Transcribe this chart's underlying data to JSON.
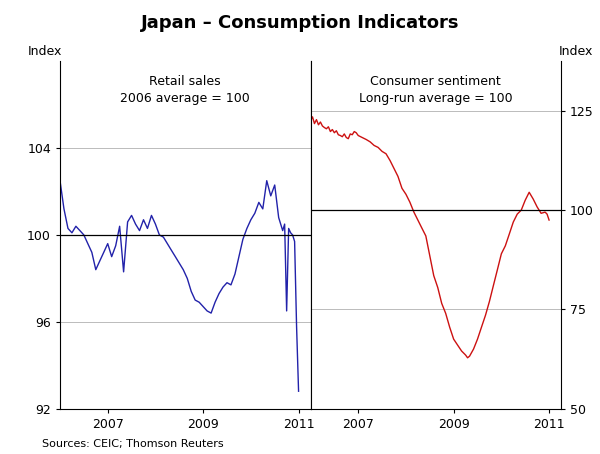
{
  "title": "Japan – Consumption Indicators",
  "left_label": "Index",
  "right_label": "Index",
  "source": "Sources: CEIC; Thomson Reuters",
  "left_panel_title": "Retail sales\n2006 average = 100",
  "right_panel_title": "Consumer sentiment\nLong-run average = 100",
  "left_ylim": [
    92,
    108
  ],
  "right_ylim": [
    50,
    137.5
  ],
  "left_yticks": [
    92,
    96,
    100,
    104
  ],
  "right_yticks": [
    50,
    75,
    100,
    125
  ],
  "left_xticks": [
    2007,
    2009,
    2011
  ],
  "right_xticks": [
    2007,
    2009,
    2011
  ],
  "left_xlim": [
    2006.0,
    2011.25
  ],
  "right_xlim": [
    2006.0,
    2011.25
  ],
  "left_color": "#2222AA",
  "right_color": "#CC1111",
  "grid_color": "#BBBBBB",
  "retail_data": [
    [
      2006.0,
      102.5
    ],
    [
      2006.083,
      101.2
    ],
    [
      2006.167,
      100.3
    ],
    [
      2006.25,
      100.1
    ],
    [
      2006.333,
      100.4
    ],
    [
      2006.417,
      100.2
    ],
    [
      2006.5,
      100.0
    ],
    [
      2006.583,
      99.6
    ],
    [
      2006.667,
      99.2
    ],
    [
      2006.75,
      98.4
    ],
    [
      2006.833,
      98.8
    ],
    [
      2006.917,
      99.2
    ],
    [
      2007.0,
      99.6
    ],
    [
      2007.083,
      99.0
    ],
    [
      2007.167,
      99.5
    ],
    [
      2007.25,
      100.4
    ],
    [
      2007.333,
      98.3
    ],
    [
      2007.417,
      100.6
    ],
    [
      2007.5,
      100.9
    ],
    [
      2007.583,
      100.5
    ],
    [
      2007.667,
      100.2
    ],
    [
      2007.75,
      100.7
    ],
    [
      2007.833,
      100.3
    ],
    [
      2007.917,
      100.9
    ],
    [
      2008.0,
      100.5
    ],
    [
      2008.083,
      100.0
    ],
    [
      2008.167,
      99.9
    ],
    [
      2008.25,
      99.6
    ],
    [
      2008.333,
      99.3
    ],
    [
      2008.417,
      99.0
    ],
    [
      2008.5,
      98.7
    ],
    [
      2008.583,
      98.4
    ],
    [
      2008.667,
      98.0
    ],
    [
      2008.75,
      97.4
    ],
    [
      2008.833,
      97.0
    ],
    [
      2008.917,
      96.9
    ],
    [
      2009.0,
      96.7
    ],
    [
      2009.083,
      96.5
    ],
    [
      2009.167,
      96.4
    ],
    [
      2009.25,
      96.9
    ],
    [
      2009.333,
      97.3
    ],
    [
      2009.417,
      97.6
    ],
    [
      2009.5,
      97.8
    ],
    [
      2009.583,
      97.7
    ],
    [
      2009.667,
      98.2
    ],
    [
      2009.75,
      99.0
    ],
    [
      2009.833,
      99.8
    ],
    [
      2009.917,
      100.3
    ],
    [
      2010.0,
      100.7
    ],
    [
      2010.083,
      101.0
    ],
    [
      2010.167,
      101.5
    ],
    [
      2010.25,
      101.2
    ],
    [
      2010.333,
      102.5
    ],
    [
      2010.417,
      101.8
    ],
    [
      2010.5,
      102.3
    ],
    [
      2010.583,
      100.8
    ],
    [
      2010.667,
      100.2
    ],
    [
      2010.708,
      100.5
    ],
    [
      2010.75,
      96.5
    ],
    [
      2010.792,
      100.3
    ],
    [
      2010.833,
      100.1
    ],
    [
      2010.875,
      100.0
    ],
    [
      2010.917,
      99.7
    ],
    [
      2010.958,
      95.8
    ],
    [
      2011.0,
      92.8
    ]
  ],
  "sentiment_data": [
    [
      2006.0,
      122.5
    ],
    [
      2006.042,
      123.5
    ],
    [
      2006.083,
      121.8
    ],
    [
      2006.125,
      122.8
    ],
    [
      2006.167,
      121.5
    ],
    [
      2006.208,
      122.2
    ],
    [
      2006.25,
      121.2
    ],
    [
      2006.292,
      120.8
    ],
    [
      2006.333,
      120.5
    ],
    [
      2006.375,
      121.0
    ],
    [
      2006.417,
      119.8
    ],
    [
      2006.458,
      120.3
    ],
    [
      2006.5,
      119.5
    ],
    [
      2006.542,
      120.0
    ],
    [
      2006.583,
      119.0
    ],
    [
      2006.625,
      118.8
    ],
    [
      2006.667,
      118.5
    ],
    [
      2006.708,
      119.2
    ],
    [
      2006.75,
      118.3
    ],
    [
      2006.792,
      118.0
    ],
    [
      2006.833,
      119.2
    ],
    [
      2006.875,
      119.0
    ],
    [
      2006.917,
      119.8
    ],
    [
      2006.958,
      119.5
    ],
    [
      2007.0,
      118.8
    ],
    [
      2007.083,
      118.3
    ],
    [
      2007.167,
      117.8
    ],
    [
      2007.25,
      117.2
    ],
    [
      2007.333,
      116.3
    ],
    [
      2007.417,
      115.8
    ],
    [
      2007.5,
      114.8
    ],
    [
      2007.583,
      114.2
    ],
    [
      2007.667,
      112.5
    ],
    [
      2007.75,
      110.5
    ],
    [
      2007.833,
      108.5
    ],
    [
      2007.917,
      105.5
    ],
    [
      2008.0,
      104.0
    ],
    [
      2008.083,
      102.0
    ],
    [
      2008.167,
      99.5
    ],
    [
      2008.25,
      97.5
    ],
    [
      2008.333,
      95.5
    ],
    [
      2008.417,
      93.5
    ],
    [
      2008.5,
      88.5
    ],
    [
      2008.583,
      83.5
    ],
    [
      2008.667,
      80.5
    ],
    [
      2008.75,
      76.5
    ],
    [
      2008.833,
      74.0
    ],
    [
      2008.917,
      70.5
    ],
    [
      2009.0,
      67.5
    ],
    [
      2009.083,
      66.0
    ],
    [
      2009.167,
      64.5
    ],
    [
      2009.25,
      63.5
    ],
    [
      2009.292,
      62.8
    ],
    [
      2009.333,
      63.2
    ],
    [
      2009.417,
      65.0
    ],
    [
      2009.5,
      67.5
    ],
    [
      2009.583,
      70.5
    ],
    [
      2009.667,
      73.5
    ],
    [
      2009.75,
      77.0
    ],
    [
      2009.833,
      81.0
    ],
    [
      2009.917,
      85.0
    ],
    [
      2010.0,
      89.0
    ],
    [
      2010.083,
      91.0
    ],
    [
      2010.167,
      94.0
    ],
    [
      2010.25,
      97.0
    ],
    [
      2010.333,
      99.0
    ],
    [
      2010.417,
      100.0
    ],
    [
      2010.5,
      102.5
    ],
    [
      2010.583,
      104.5
    ],
    [
      2010.667,
      102.8
    ],
    [
      2010.75,
      100.8
    ],
    [
      2010.833,
      99.2
    ],
    [
      2010.917,
      99.5
    ],
    [
      2010.958,
      99.0
    ],
    [
      2011.0,
      97.5
    ]
  ]
}
